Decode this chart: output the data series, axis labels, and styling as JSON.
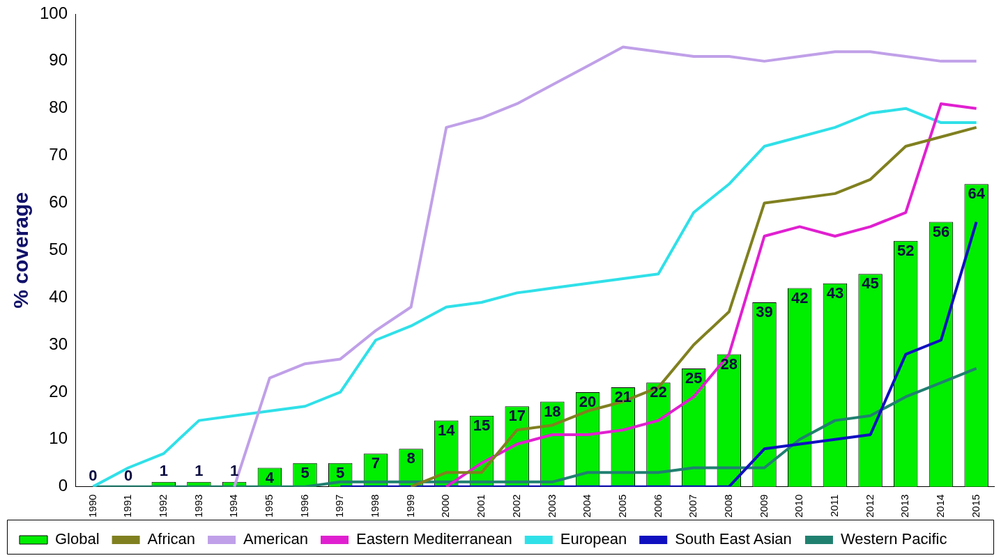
{
  "chart_data": {
    "type": "bar",
    "ylabel": "% coverage",
    "categories": [
      "1990",
      "1991",
      "1992",
      "1993",
      "1994",
      "1995",
      "1996",
      "1997",
      "1998",
      "1999",
      "2000",
      "2001",
      "2002",
      "2003",
      "2004",
      "2005",
      "2006",
      "2007",
      "2008",
      "2009",
      "2010",
      "2011",
      "2012",
      "2013",
      "2014",
      "2015"
    ],
    "series": [
      {
        "name": "Global",
        "color": "#00ee00",
        "values": [
          0,
          0,
          1,
          1,
          1,
          4,
          5,
          5,
          7,
          8,
          14,
          15,
          17,
          18,
          20,
          21,
          22,
          25,
          28,
          39,
          42,
          43,
          45,
          52,
          56,
          64
        ],
        "value_labels": [
          "0",
          "0",
          "1",
          "1",
          "1",
          "4",
          "5",
          "5",
          "7",
          "8",
          "14",
          "15",
          "17",
          "18",
          "20",
          "21",
          "22",
          "25",
          "28",
          "39",
          "42",
          "43",
          "45",
          "52",
          "56",
          "64"
        ]
      },
      {
        "name": "African",
        "type": "line",
        "color": "#808020",
        "values": [
          null,
          null,
          null,
          null,
          null,
          null,
          null,
          null,
          null,
          0,
          3,
          3,
          12,
          13,
          16,
          18,
          21,
          30,
          37,
          60,
          61,
          62,
          65,
          72,
          74,
          76
        ]
      },
      {
        "name": "American",
        "type": "line",
        "color": "#c0a0e8",
        "values": [
          null,
          null,
          null,
          null,
          0,
          23,
          26,
          27,
          33,
          38,
          76,
          78,
          81,
          85,
          89,
          93,
          92,
          91,
          91,
          90,
          91,
          92,
          92,
          91,
          90,
          90
        ]
      },
      {
        "name": "Eastern Mediterranean",
        "type": "line",
        "color": "#e020d0",
        "values": [
          null,
          null,
          null,
          null,
          null,
          null,
          null,
          null,
          null,
          null,
          0,
          5,
          9,
          11,
          11,
          12,
          14,
          19,
          28,
          53,
          55,
          53,
          55,
          58,
          81,
          80
        ]
      },
      {
        "name": "European",
        "type": "line",
        "color": "#30e0e8",
        "values": [
          0,
          4,
          7,
          14,
          15,
          16,
          17,
          20,
          31,
          34,
          38,
          39,
          41,
          42,
          43,
          44,
          45,
          58,
          64,
          72,
          74,
          76,
          79,
          80,
          77,
          77
        ]
      },
      {
        "name": "South East Asian",
        "type": "line",
        "color": "#1010c0",
        "values": [
          null,
          null,
          null,
          null,
          null,
          null,
          null,
          0,
          0,
          0,
          0,
          0,
          0,
          0,
          0,
          0,
          0,
          0,
          0,
          8,
          9,
          10,
          11,
          28,
          31,
          56
        ]
      },
      {
        "name": "Western Pacific",
        "type": "line",
        "color": "#208070",
        "values": [
          0,
          0,
          0,
          0,
          0,
          0,
          0,
          1,
          1,
          1,
          1,
          1,
          1,
          1,
          3,
          3,
          3,
          4,
          4,
          4,
          10,
          14,
          15,
          19,
          22,
          25
        ]
      }
    ],
    "ylim": [
      0,
      100
    ],
    "yticks": [
      0,
      10,
      20,
      30,
      40,
      50,
      60,
      70,
      80,
      90,
      100
    ],
    "grid": false,
    "legend": "bottom",
    "marker": "none",
    "line_style": "solid"
  }
}
